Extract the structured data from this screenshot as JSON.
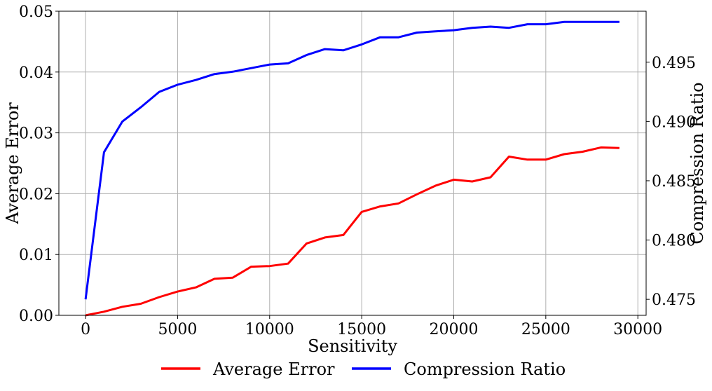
{
  "chart_data": {
    "type": "line",
    "xlabel": "Sensitivity",
    "ylabel_left": "Average Error",
    "ylabel_right": "Compression Ratio",
    "xlim": [
      -1450,
      30450
    ],
    "ylim_left": [
      0,
      0.05
    ],
    "ylim_right": [
      0.47365,
      0.4993
    ],
    "x_ticks": [
      0,
      5000,
      10000,
      15000,
      20000,
      25000,
      30000
    ],
    "x_tick_labels": [
      "0",
      "5000",
      "10000",
      "15000",
      "20000",
      "25000",
      "30000"
    ],
    "y_left_ticks": [
      0.0,
      0.01,
      0.02,
      0.03,
      0.04,
      0.05
    ],
    "y_left_tick_labels": [
      "0.00",
      "0.01",
      "0.02",
      "0.03",
      "0.04",
      "0.05"
    ],
    "y_right_ticks": [
      0.475,
      0.48,
      0.485,
      0.49,
      0.495
    ],
    "y_right_tick_labels": [
      "0.475",
      "0.480",
      "0.485",
      "0.490",
      "0.495"
    ],
    "grid": true,
    "legend_position": "bottom-center",
    "x": [
      0,
      1000,
      2000,
      3000,
      4000,
      5000,
      6000,
      7000,
      8000,
      9000,
      10000,
      11000,
      12000,
      13000,
      14000,
      15000,
      16000,
      17000,
      18000,
      19000,
      20000,
      21000,
      22000,
      23000,
      24000,
      25000,
      26000,
      27000,
      28000,
      29000
    ],
    "series": [
      {
        "name": "Average Error",
        "axis": "left",
        "color": "#ff0000",
        "values": [
          0.0,
          0.0006,
          0.0014,
          0.0019,
          0.003,
          0.0039,
          0.0046,
          0.006,
          0.0062,
          0.008,
          0.0081,
          0.0085,
          0.0118,
          0.0128,
          0.0132,
          0.017,
          0.0179,
          0.0184,
          0.0199,
          0.0213,
          0.0223,
          0.022,
          0.0227,
          0.0261,
          0.0256,
          0.0256,
          0.0265,
          0.0269,
          0.0276,
          0.0275
        ]
      },
      {
        "name": "Compression Ratio",
        "axis": "right",
        "color": "#0000ff",
        "values": [
          0.475,
          0.4874,
          0.49,
          0.4912,
          0.4925,
          0.4931,
          0.4935,
          0.494,
          0.4942,
          0.4945,
          0.4948,
          0.4949,
          0.4956,
          0.4961,
          0.496,
          0.4965,
          0.4971,
          0.4971,
          0.4975,
          0.4976,
          0.4977,
          0.4979,
          0.498,
          0.4979,
          0.4982,
          0.4982,
          0.4984,
          0.4984,
          0.4984,
          0.4984
        ]
      }
    ]
  }
}
